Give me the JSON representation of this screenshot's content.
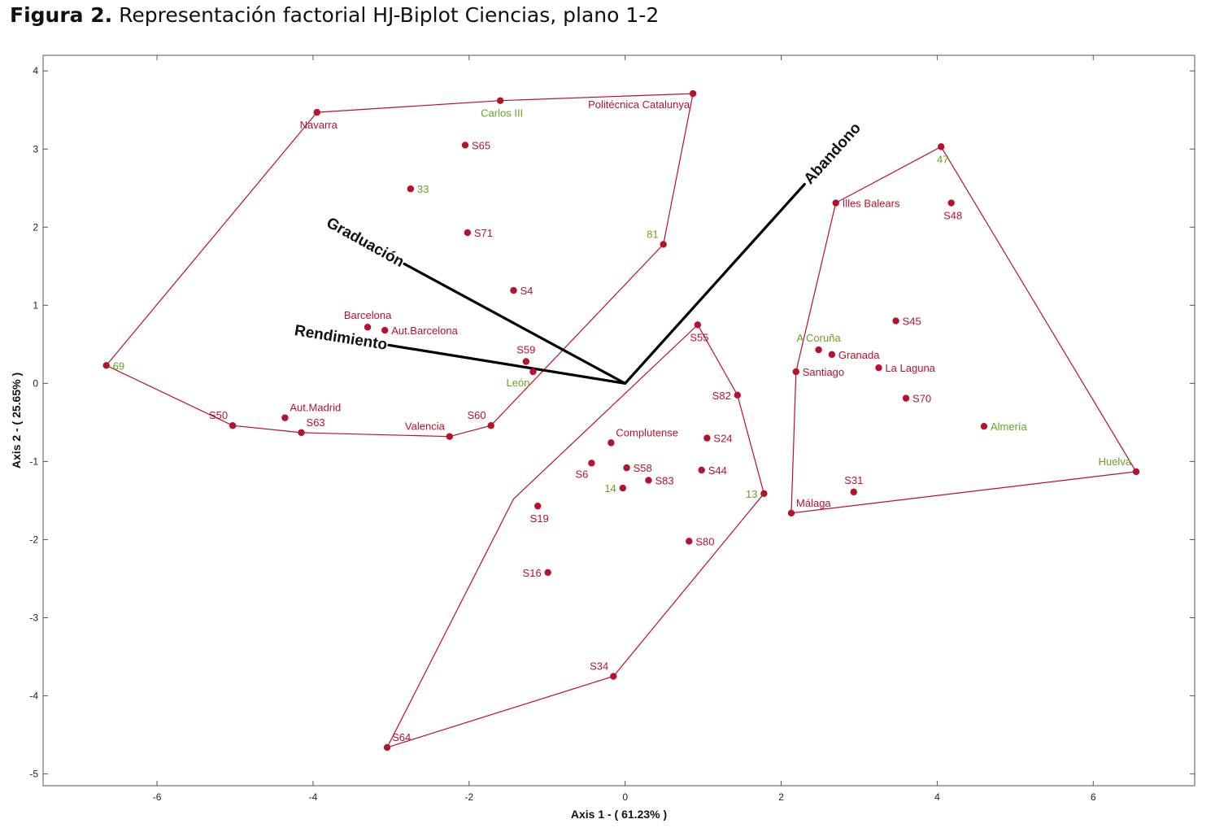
{
  "caption": {
    "bold": "Figura 2.",
    "text": "Representación factorial HJ-Biplot Ciencias, plano 1-2"
  },
  "colors": {
    "point": "#b5122e",
    "hull": "#b5122e",
    "green_label": "#6aa121",
    "red_label": "#b5122e",
    "vector": "#000000"
  },
  "chart_data": {
    "type": "scatter",
    "xlabel": "Axis 1 - ( 61.23% )",
    "ylabel": "Axis 2 - ( 25.65% )",
    "xlim": [
      -7.46,
      7.3
    ],
    "ylim": [
      -5.15,
      4.2
    ],
    "xticks": [
      -6,
      -4,
      -2,
      0,
      2,
      4,
      6
    ],
    "yticks": [
      -5,
      -4,
      -3,
      -2,
      -1,
      0,
      1,
      2,
      3,
      4
    ],
    "grid": false,
    "points": [
      {
        "label": "Navarra",
        "x": -3.95,
        "y": 3.47,
        "color": "red",
        "pos": "below"
      },
      {
        "label": "Carlos III",
        "x": -1.6,
        "y": 3.62,
        "color": "green",
        "pos": "below"
      },
      {
        "label": "Politécnica Catalunya",
        "x": 0.87,
        "y": 3.71,
        "color": "red",
        "pos": "belowleft"
      },
      {
        "label": "S65",
        "x": -2.05,
        "y": 3.05,
        "color": "red",
        "pos": "right"
      },
      {
        "label": "33",
        "x": -2.75,
        "y": 2.49,
        "color": "green",
        "pos": "right"
      },
      {
        "label": "S71",
        "x": -2.02,
        "y": 1.93,
        "color": "red",
        "pos": "right"
      },
      {
        "label": "81",
        "x": 0.49,
        "y": 1.78,
        "color": "green",
        "pos": "upleft"
      },
      {
        "label": "S4",
        "x": -1.43,
        "y": 1.19,
        "color": "red",
        "pos": "right"
      },
      {
        "label": "Barcelona",
        "x": -3.3,
        "y": 0.72,
        "color": "red",
        "pos": "up"
      },
      {
        "label": "Aut.Barcelona",
        "x": -3.08,
        "y": 0.68,
        "color": "red",
        "pos": "right"
      },
      {
        "label": "69",
        "x": -6.65,
        "y": 0.23,
        "color": "green",
        "pos": "right"
      },
      {
        "label": "S59",
        "x": -1.27,
        "y": 0.28,
        "color": "red",
        "pos": "up"
      },
      {
        "label": "León",
        "x": -1.18,
        "y": 0.15,
        "color": "green",
        "pos": "belowleft"
      },
      {
        "label": "S50",
        "x": -5.03,
        "y": -0.54,
        "color": "red",
        "pos": "upleft"
      },
      {
        "label": "Aut.Madrid",
        "x": -4.36,
        "y": -0.44,
        "color": "red",
        "pos": "upright"
      },
      {
        "label": "S63",
        "x": -4.15,
        "y": -0.63,
        "color": "red",
        "pos": "upright"
      },
      {
        "label": "Valencia",
        "x": -2.25,
        "y": -0.68,
        "color": "red",
        "pos": "upleft"
      },
      {
        "label": "S60",
        "x": -1.72,
        "y": -0.54,
        "color": "red",
        "pos": "upleft"
      },
      {
        "label": "S55",
        "x": 0.93,
        "y": 0.75,
        "color": "red",
        "pos": "below"
      },
      {
        "label": "S82",
        "x": 1.44,
        "y": -0.15,
        "color": "red",
        "pos": "left"
      },
      {
        "label": "Complutense",
        "x": -0.18,
        "y": -0.76,
        "color": "red",
        "pos": "upright"
      },
      {
        "label": "S24",
        "x": 1.05,
        "y": -0.7,
        "color": "red",
        "pos": "right"
      },
      {
        "label": "S6",
        "x": -0.43,
        "y": -1.02,
        "color": "red",
        "pos": "belowleft"
      },
      {
        "label": "S58",
        "x": 0.02,
        "y": -1.08,
        "color": "red",
        "pos": "right"
      },
      {
        "label": "S44",
        "x": 0.98,
        "y": -1.11,
        "color": "red",
        "pos": "right"
      },
      {
        "label": "S83",
        "x": 0.3,
        "y": -1.24,
        "color": "red",
        "pos": "right"
      },
      {
        "label": "14",
        "x": -0.03,
        "y": -1.34,
        "color": "green",
        "pos": "left"
      },
      {
        "label": "13",
        "x": 1.78,
        "y": -1.41,
        "color": "green",
        "pos": "left"
      },
      {
        "label": "S19",
        "x": -1.12,
        "y": -1.57,
        "color": "red",
        "pos": "below"
      },
      {
        "label": "S80",
        "x": 0.82,
        "y": -2.02,
        "color": "red",
        "pos": "right"
      },
      {
        "label": "S16",
        "x": -0.99,
        "y": -2.42,
        "color": "red",
        "pos": "left"
      },
      {
        "label": "S34",
        "x": -0.15,
        "y": -3.75,
        "color": "red",
        "pos": "upleft"
      },
      {
        "label": "S64",
        "x": -3.05,
        "y": -4.66,
        "color": "red",
        "pos": "upright"
      },
      {
        "label": "47",
        "x": 4.05,
        "y": 3.03,
        "color": "green",
        "pos": "below"
      },
      {
        "label": "Illes Balears",
        "x": 2.7,
        "y": 2.31,
        "color": "red",
        "pos": "right"
      },
      {
        "label": "S48",
        "x": 4.18,
        "y": 2.31,
        "color": "red",
        "pos": "below"
      },
      {
        "label": "S45",
        "x": 3.47,
        "y": 0.8,
        "color": "red",
        "pos": "right"
      },
      {
        "label": "A Coruña",
        "x": 2.48,
        "y": 0.43,
        "color": "green",
        "pos": "up"
      },
      {
        "label": "Granada",
        "x": 2.65,
        "y": 0.37,
        "color": "red",
        "pos": "right"
      },
      {
        "label": "Santiago",
        "x": 2.19,
        "y": 0.15,
        "color": "red",
        "pos": "right"
      },
      {
        "label": "La Laguna",
        "x": 3.25,
        "y": 0.2,
        "color": "red",
        "pos": "right"
      },
      {
        "label": "S70",
        "x": 3.6,
        "y": -0.19,
        "color": "red",
        "pos": "right"
      },
      {
        "label": "Almería",
        "x": 4.6,
        "y": -0.55,
        "color": "green",
        "pos": "right"
      },
      {
        "label": "Huelva",
        "x": 6.55,
        "y": -1.13,
        "color": "green",
        "pos": "upleft"
      },
      {
        "label": "S31",
        "x": 2.93,
        "y": -1.39,
        "color": "red",
        "pos": "up"
      },
      {
        "label": "Málaga",
        "x": 2.13,
        "y": -1.66,
        "color": "red",
        "pos": "upright"
      }
    ],
    "hulls": [
      [
        [
          -3.95,
          3.47
        ],
        [
          -1.6,
          3.62
        ],
        [
          0.87,
          3.71
        ],
        [
          0.49,
          1.78
        ],
        [
          -1.72,
          -0.54
        ],
        [
          -2.25,
          -0.68
        ],
        [
          -4.15,
          -0.63
        ],
        [
          -5.03,
          -0.54
        ],
        [
          -6.65,
          0.23
        ]
      ],
      [
        [
          0.93,
          0.75
        ],
        [
          1.44,
          -0.15
        ],
        [
          1.78,
          -1.41
        ],
        [
          -0.15,
          -3.75
        ],
        [
          -3.05,
          -4.66
        ],
        [
          -1.43,
          -1.48
        ]
      ],
      [
        [
          2.7,
          2.31
        ],
        [
          4.05,
          3.03
        ],
        [
          6.55,
          -1.13
        ],
        [
          2.13,
          -1.66
        ],
        [
          2.19,
          0.15
        ]
      ]
    ],
    "vectors": [
      {
        "name": "Graduación",
        "x": -2.83,
        "y": 1.53,
        "angle": 29
      },
      {
        "name": "Rendimiento",
        "x": -3.03,
        "y": 0.49,
        "angle": 9
      },
      {
        "name": "Abandono",
        "x": 2.3,
        "y": 2.55,
        "angle": -48
      }
    ]
  }
}
